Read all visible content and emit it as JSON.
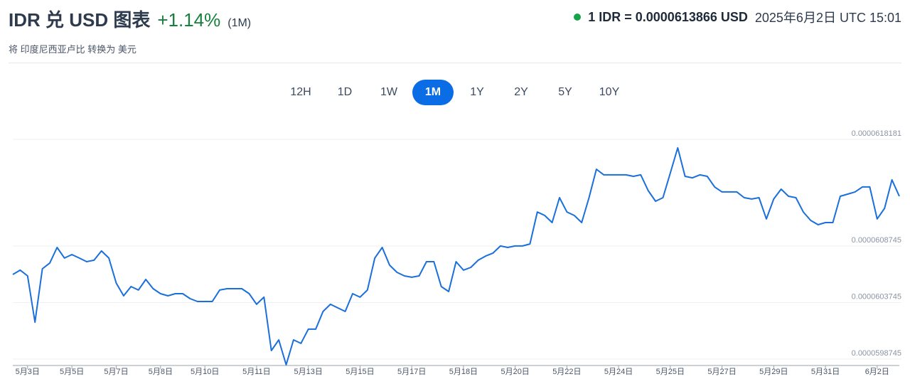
{
  "header": {
    "title": "IDR 兑 USD 图表",
    "change": "+1.14%",
    "period": "(1M)",
    "subtitle": "将 印度尼西亚卢比 转换为 美元",
    "rate": "1 IDR = 0.0000613866 USD",
    "timestamp": "2025年6月2日 UTC 15:01"
  },
  "ranges": {
    "labels": [
      "12H",
      "1D",
      "1W",
      "1M",
      "1Y",
      "2Y",
      "5Y",
      "10Y"
    ],
    "active": 3
  },
  "chart_data": {
    "type": "line",
    "categories": [
      null,
      null,
      "5月3日",
      null,
      null,
      null,
      null,
      null,
      "5月5日",
      null,
      null,
      null,
      null,
      null,
      "5月7日",
      null,
      null,
      null,
      null,
      null,
      "5月8日",
      null,
      null,
      null,
      null,
      null,
      "5月10日",
      null,
      null,
      null,
      null,
      null,
      null,
      "5月11日",
      null,
      null,
      null,
      null,
      null,
      null,
      "5月13日",
      null,
      null,
      null,
      null,
      null,
      null,
      "5月15日",
      null,
      null,
      null,
      null,
      null,
      null,
      "5月17日",
      null,
      null,
      null,
      null,
      null,
      null,
      "5月18日",
      null,
      null,
      null,
      null,
      null,
      null,
      "5月20日",
      null,
      null,
      null,
      null,
      null,
      null,
      "5月22日",
      null,
      null,
      null,
      null,
      null,
      null,
      "5月24日",
      null,
      null,
      null,
      null,
      null,
      null,
      "5月25日",
      null,
      null,
      null,
      null,
      null,
      null,
      "5月27日",
      null,
      null,
      null,
      null,
      null,
      null,
      "5月29日",
      null,
      null,
      null,
      null,
      null,
      null,
      "5月31日",
      null,
      null,
      null,
      null,
      null,
      null,
      "6月2日",
      null,
      null,
      null
    ],
    "values": [
      6.0623e-05,
      6.0661e-05,
      6.061e-05,
      6.0201e-05,
      6.0673e-05,
      6.0724e-05,
      6.0862e-05,
      6.0768e-05,
      6.0799e-05,
      6.0768e-05,
      6.0736e-05,
      6.0749e-05,
      6.0831e-05,
      6.0768e-05,
      6.0547e-05,
      6.0434e-05,
      6.0516e-05,
      6.0485e-05,
      6.0579e-05,
      6.0497e-05,
      6.0453e-05,
      6.0434e-05,
      6.0453e-05,
      6.0453e-05,
      6.0409e-05,
      6.0384e-05,
      6.0384e-05,
      6.0384e-05,
      6.0485e-05,
      6.0497e-05,
      6.0497e-05,
      6.0497e-05,
      6.0453e-05,
      6.0359e-05,
      6.0422e-05,
      5.995e-05,
      6.0044e-05,
      5.9824e-05,
      6.0044e-05,
      6.0013e-05,
      6.0139e-05,
      6.0139e-05,
      6.0296e-05,
      6.0359e-05,
      6.0327e-05,
      6.0296e-05,
      6.0453e-05,
      6.0422e-05,
      6.0485e-05,
      6.0768e-05,
      6.0862e-05,
      6.0705e-05,
      6.0642e-05,
      6.061e-05,
      6.0598e-05,
      6.061e-05,
      6.0736e-05,
      6.0736e-05,
      6.0516e-05,
      6.0472e-05,
      6.0736e-05,
      6.0661e-05,
      6.0686e-05,
      6.0749e-05,
      6.0786e-05,
      6.0812e-05,
      6.0875e-05,
      6.0862e-05,
      6.0875e-05,
      6.0875e-05,
      6.0893e-05,
      6.1176e-05,
      6.1145e-05,
      6.1082e-05,
      6.1302e-05,
      6.1176e-05,
      6.1145e-05,
      6.1082e-05,
      6.1302e-05,
      6.1554e-05,
      6.1504e-05,
      6.1504e-05,
      6.1504e-05,
      6.1504e-05,
      6.1491e-05,
      6.1504e-05,
      6.1365e-05,
      6.1271e-05,
      6.1302e-05,
      6.1522e-05,
      6.1743e-05,
      6.1491e-05,
      6.1478e-05,
      6.1504e-05,
      6.1491e-05,
      6.1397e-05,
      6.1353e-05,
      6.1353e-05,
      6.1353e-05,
      6.1302e-05,
      6.129e-05,
      6.1302e-05,
      6.1114e-05,
      6.129e-05,
      6.1378e-05,
      6.1315e-05,
      6.1302e-05,
      6.1176e-05,
      6.1101e-05,
      6.1063e-05,
      6.1082e-05,
      6.1082e-05,
      6.1315e-05,
      6.1334e-05,
      6.1353e-05,
      6.1397e-05,
      6.1397e-05,
      6.1114e-05,
      6.1208e-05,
      6.146e-05,
      6.1315e-05
    ],
    "color": "#1a6fdb",
    "ylim": [
      5.98176e-05,
      6.18181e-05
    ],
    "yticks": [
      5.98745e-05,
      6.03745e-05,
      6.08745e-05,
      6.18181e-05
    ],
    "grid": true
  }
}
